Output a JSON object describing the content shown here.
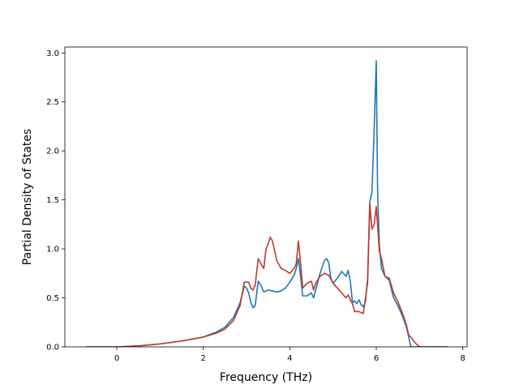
{
  "chart_data": {
    "type": "line",
    "title": "",
    "xlabel": "Frequency (THz)",
    "ylabel": "Partial Density of States",
    "xlim": [
      -1.2,
      8.1
    ],
    "ylim": [
      0,
      3.06
    ],
    "xticks": [
      0,
      2,
      4,
      6,
      8
    ],
    "xtick_labels": [
      "0",
      "2",
      "4",
      "6",
      "8"
    ],
    "yticks": [
      0.0,
      0.5,
      1.0,
      1.5,
      2.0,
      2.5,
      3.0
    ],
    "ytick_labels": [
      "0.0",
      "0.5",
      "1.0",
      "1.5",
      "2.0",
      "2.5",
      "3.0"
    ],
    "grid": false,
    "legend": "none",
    "series": [
      {
        "color": "#1f77b4",
        "x": [
          -0.7,
          0.0,
          0.5,
          1.0,
          1.5,
          2.0,
          2.3,
          2.5,
          2.7,
          2.85,
          2.95,
          3.0,
          3.05,
          3.1,
          3.15,
          3.2,
          3.27,
          3.33,
          3.4,
          3.5,
          3.6,
          3.7,
          3.8,
          3.9,
          4.0,
          4.1,
          4.15,
          4.2,
          4.25,
          4.3,
          4.4,
          4.5,
          4.55,
          4.6,
          4.7,
          4.8,
          4.85,
          4.9,
          4.95,
          5.0,
          5.1,
          5.2,
          5.3,
          5.35,
          5.4,
          5.45,
          5.5,
          5.55,
          5.6,
          5.65,
          5.7,
          5.75,
          5.8,
          5.85,
          5.9,
          5.95,
          6.0,
          6.03,
          6.07,
          6.12,
          6.2,
          6.3,
          6.4,
          6.5,
          6.6,
          6.7,
          6.75,
          6.8,
          6.9,
          7.0,
          7.65
        ],
        "y": [
          0.0,
          0.0,
          0.01,
          0.03,
          0.06,
          0.1,
          0.15,
          0.2,
          0.3,
          0.45,
          0.62,
          0.6,
          0.55,
          0.45,
          0.4,
          0.42,
          0.67,
          0.63,
          0.56,
          0.58,
          0.57,
          0.56,
          0.57,
          0.6,
          0.66,
          0.73,
          0.8,
          0.9,
          0.72,
          0.52,
          0.52,
          0.55,
          0.5,
          0.58,
          0.75,
          0.88,
          0.9,
          0.86,
          0.7,
          0.65,
          0.7,
          0.77,
          0.72,
          0.78,
          0.67,
          0.45,
          0.47,
          0.44,
          0.48,
          0.43,
          0.41,
          0.46,
          0.7,
          1.48,
          1.58,
          2.2,
          2.92,
          1.6,
          1.05,
          0.8,
          0.72,
          0.68,
          0.5,
          0.42,
          0.32,
          0.2,
          0.1,
          0.0,
          0.0,
          0.0,
          0.0
        ]
      },
      {
        "color": "#c0392b",
        "x": [
          -0.7,
          0.0,
          0.5,
          1.0,
          1.5,
          2.0,
          2.3,
          2.5,
          2.7,
          2.85,
          2.95,
          3.0,
          3.05,
          3.1,
          3.15,
          3.2,
          3.27,
          3.33,
          3.4,
          3.45,
          3.5,
          3.55,
          3.6,
          3.7,
          3.8,
          3.9,
          4.0,
          4.1,
          4.15,
          4.2,
          4.25,
          4.3,
          4.4,
          4.5,
          4.55,
          4.6,
          4.7,
          4.8,
          4.9,
          5.0,
          5.1,
          5.2,
          5.3,
          5.35,
          5.4,
          5.45,
          5.5,
          5.6,
          5.7,
          5.8,
          5.85,
          5.9,
          5.95,
          6.0,
          6.03,
          6.07,
          6.12,
          6.2,
          6.3,
          6.4,
          6.5,
          6.6,
          6.7,
          6.75,
          6.8,
          6.9,
          7.0,
          7.65
        ],
        "y": [
          0.0,
          0.0,
          0.01,
          0.03,
          0.06,
          0.1,
          0.14,
          0.18,
          0.27,
          0.42,
          0.66,
          0.66,
          0.66,
          0.6,
          0.58,
          0.63,
          0.9,
          0.85,
          0.8,
          1.0,
          1.05,
          1.12,
          1.08,
          0.88,
          0.8,
          0.78,
          0.75,
          0.8,
          0.85,
          1.08,
          0.85,
          0.6,
          0.65,
          0.67,
          0.58,
          0.65,
          0.72,
          0.75,
          0.73,
          0.65,
          0.6,
          0.55,
          0.5,
          0.53,
          0.48,
          0.44,
          0.36,
          0.36,
          0.34,
          0.65,
          1.46,
          1.2,
          1.25,
          1.43,
          1.25,
          0.98,
          0.9,
          0.72,
          0.7,
          0.55,
          0.46,
          0.35,
          0.22,
          0.12,
          0.1,
          0.04,
          0.0,
          0.0
        ]
      }
    ]
  }
}
